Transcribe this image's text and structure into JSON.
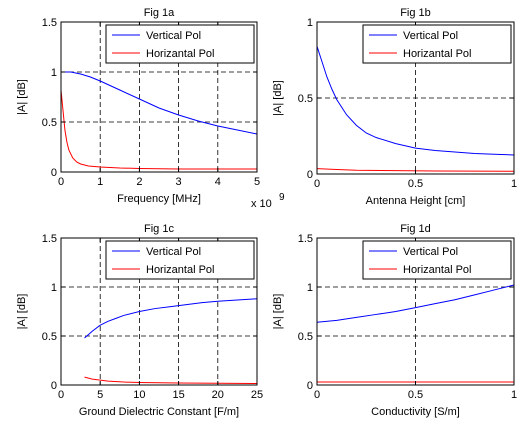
{
  "chart_data": [
    {
      "type": "line",
      "title": "Fig 1a",
      "xlabel": "Frequency [MHz]",
      "ylabel": "|A| [dB]",
      "xlim": [
        0,
        5
      ],
      "ylim": [
        0,
        1.5
      ],
      "xticks": [
        0,
        1,
        2,
        3,
        4,
        5
      ],
      "xtick_labels": [
        "0",
        "1",
        "2",
        "3",
        "4",
        "5"
      ],
      "yticks": [
        0,
        0.5,
        1,
        1.5
      ],
      "ytick_labels": [
        "0",
        "0.5",
        "1",
        "1.5"
      ],
      "x_multiplier": "x 10",
      "x_multiplier_exp": "9",
      "grid": true,
      "legend_position": "top-right",
      "series": [
        {
          "name": "Vertical Pol",
          "color": "#0000ff",
          "x": [
            0,
            0.25,
            0.5,
            0.75,
            1,
            1.5,
            2,
            2.5,
            3,
            3.5,
            4,
            4.5,
            5
          ],
          "y": [
            1.0,
            1.0,
            0.98,
            0.95,
            0.91,
            0.82,
            0.73,
            0.64,
            0.57,
            0.51,
            0.46,
            0.42,
            0.38
          ]
        },
        {
          "name": "Horizantal Pol",
          "color": "#ff0000",
          "x": [
            0,
            0.05,
            0.1,
            0.15,
            0.2,
            0.3,
            0.4,
            0.5,
            0.7,
            1,
            1.5,
            2,
            3,
            4,
            5
          ],
          "y": [
            0.82,
            0.62,
            0.42,
            0.3,
            0.22,
            0.14,
            0.1,
            0.08,
            0.06,
            0.05,
            0.04,
            0.035,
            0.03,
            0.03,
            0.03
          ]
        }
      ]
    },
    {
      "type": "line",
      "title": "Fig 1b",
      "xlabel": "Antenna Height [cm]",
      "ylabel": "|A| [dB]",
      "xlim": [
        0,
        1
      ],
      "ylim": [
        0,
        1
      ],
      "xticks": [
        0,
        0.5,
        1
      ],
      "xtick_labels": [
        "0",
        "0.5",
        "1"
      ],
      "yticks": [
        0,
        0.5,
        1
      ],
      "ytick_labels": [
        "0",
        "0.5",
        "1"
      ],
      "grid": true,
      "legend_position": "top-right",
      "series": [
        {
          "name": "Vertical Pol",
          "color": "#0000ff",
          "x": [
            0,
            0.025,
            0.05,
            0.075,
            0.1,
            0.15,
            0.2,
            0.25,
            0.3,
            0.4,
            0.5,
            0.6,
            0.7,
            0.8,
            0.9,
            1
          ],
          "y": [
            0.84,
            0.74,
            0.64,
            0.56,
            0.49,
            0.39,
            0.32,
            0.27,
            0.24,
            0.2,
            0.17,
            0.155,
            0.145,
            0.135,
            0.13,
            0.125
          ]
        },
        {
          "name": "Horizantal Pol",
          "color": "#ff0000",
          "x": [
            0,
            0.1,
            0.2,
            0.4,
            0.6,
            0.8,
            1
          ],
          "y": [
            0.035,
            0.03,
            0.025,
            0.022,
            0.02,
            0.019,
            0.018
          ]
        }
      ]
    },
    {
      "type": "line",
      "title": "Fig 1c",
      "xlabel": "Ground Dielectric Constant [F/m]",
      "ylabel": "|A| [dB]",
      "xlim": [
        0,
        25
      ],
      "ylim": [
        0,
        1.5
      ],
      "xticks": [
        0,
        5,
        10,
        15,
        20,
        25
      ],
      "xtick_labels": [
        "0",
        "5",
        "10",
        "15",
        "20",
        "25"
      ],
      "yticks": [
        0,
        0.5,
        1,
        1.5
      ],
      "ytick_labels": [
        "0",
        "0.5",
        "1",
        "1.5"
      ],
      "grid": true,
      "legend_position": "top-right",
      "series": [
        {
          "name": "Vertical Pol",
          "color": "#0000ff",
          "x": [
            3,
            4,
            5,
            6,
            7,
            8,
            10,
            12,
            14,
            16,
            18,
            20,
            22,
            25
          ],
          "y": [
            0.48,
            0.55,
            0.61,
            0.65,
            0.68,
            0.71,
            0.75,
            0.78,
            0.8,
            0.82,
            0.84,
            0.855,
            0.865,
            0.88
          ]
        },
        {
          "name": "Horizantal Pol",
          "color": "#ff0000",
          "x": [
            3,
            4,
            5,
            6,
            8,
            10,
            15,
            20,
            25
          ],
          "y": [
            0.08,
            0.06,
            0.05,
            0.04,
            0.03,
            0.025,
            0.02,
            0.018,
            0.015
          ]
        }
      ]
    },
    {
      "type": "line",
      "title": "Fig 1d",
      "xlabel": "Conductivity [S/m]",
      "ylabel": "|A| [dB]",
      "xlim": [
        0,
        1
      ],
      "ylim": [
        0,
        1.5
      ],
      "xticks": [
        0,
        0.5,
        1
      ],
      "xtick_labels": [
        "0",
        "0.5",
        "1"
      ],
      "yticks": [
        0,
        0.5,
        1,
        1.5
      ],
      "ytick_labels": [
        "0",
        "0.5",
        "1",
        "1.5"
      ],
      "grid": true,
      "legend_position": "top-right",
      "series": [
        {
          "name": "Vertical Pol",
          "color": "#0000ff",
          "x": [
            0,
            0.1,
            0.2,
            0.3,
            0.4,
            0.5,
            0.6,
            0.7,
            0.8,
            0.9,
            1
          ],
          "y": [
            0.64,
            0.66,
            0.69,
            0.72,
            0.75,
            0.79,
            0.83,
            0.87,
            0.92,
            0.97,
            1.02
          ]
        },
        {
          "name": "Horizantal Pol",
          "color": "#ff0000",
          "x": [
            0,
            0.5,
            1
          ],
          "y": [
            0.03,
            0.03,
            0.03
          ]
        }
      ]
    }
  ]
}
